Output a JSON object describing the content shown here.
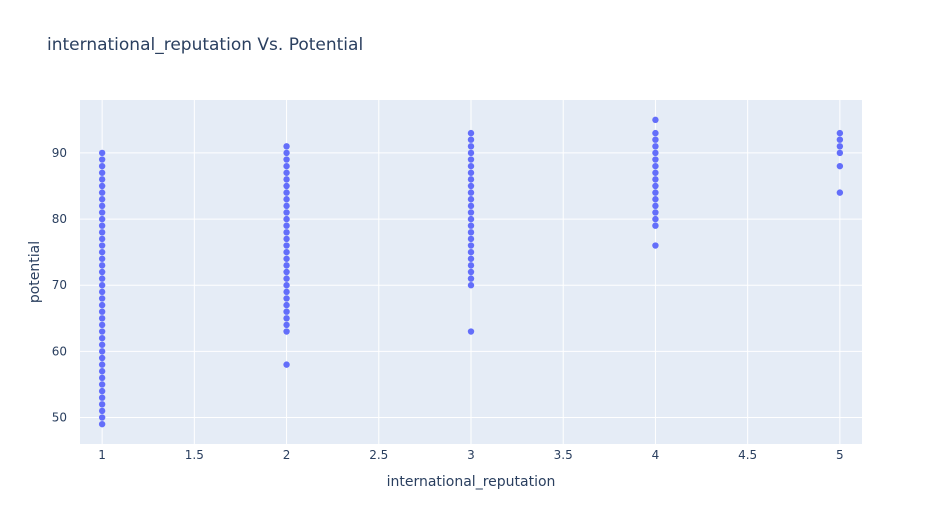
{
  "chart_data": {
    "type": "scatter",
    "title": "international_reputation Vs. Potential",
    "xlabel": "international_reputation",
    "ylabel": "potential",
    "xlim": [
      0.88,
      5.12
    ],
    "ylim": [
      46,
      98
    ],
    "xticks": [
      1,
      1.5,
      2,
      2.5,
      3,
      3.5,
      4,
      4.5,
      5
    ],
    "xtick_labels": [
      "1",
      "1.5",
      "2",
      "2.5",
      "3",
      "3.5",
      "4",
      "4.5",
      "5"
    ],
    "yticks": [
      50,
      60,
      70,
      80,
      90
    ],
    "ytick_labels": [
      "50",
      "60",
      "70",
      "80",
      "90"
    ],
    "grid": true,
    "colors": {
      "marker": "#636efa",
      "plot_background": "#e5ecf6",
      "grid": "#ffffff",
      "text": "#2a3f5f"
    },
    "series": [
      {
        "x_value": 1,
        "y": [
          49,
          50,
          51,
          52,
          53,
          54,
          55,
          56,
          57,
          58,
          59,
          60,
          61,
          62,
          63,
          64,
          65,
          66,
          67,
          68,
          69,
          70,
          71,
          72,
          73,
          74,
          75,
          76,
          77,
          78,
          79,
          80,
          81,
          82,
          83,
          84,
          85,
          86,
          87,
          88,
          89,
          90
        ]
      },
      {
        "x_value": 2,
        "y": [
          58,
          63,
          64,
          65,
          66,
          67,
          68,
          69,
          70,
          71,
          72,
          73,
          74,
          75,
          76,
          77,
          78,
          79,
          80,
          81,
          82,
          83,
          84,
          85,
          86,
          87,
          88,
          89,
          90,
          91
        ]
      },
      {
        "x_value": 3,
        "y": [
          63,
          70,
          71,
          72,
          73,
          74,
          75,
          76,
          77,
          78,
          79,
          80,
          81,
          82,
          83,
          84,
          85,
          86,
          87,
          88,
          89,
          90,
          91,
          92,
          93
        ]
      },
      {
        "x_value": 4,
        "y": [
          76,
          79,
          80,
          81,
          82,
          83,
          84,
          85,
          86,
          87,
          88,
          89,
          90,
          91,
          92,
          93,
          95
        ]
      },
      {
        "x_value": 5,
        "y": [
          84,
          88,
          90,
          91,
          92,
          93
        ]
      }
    ]
  }
}
